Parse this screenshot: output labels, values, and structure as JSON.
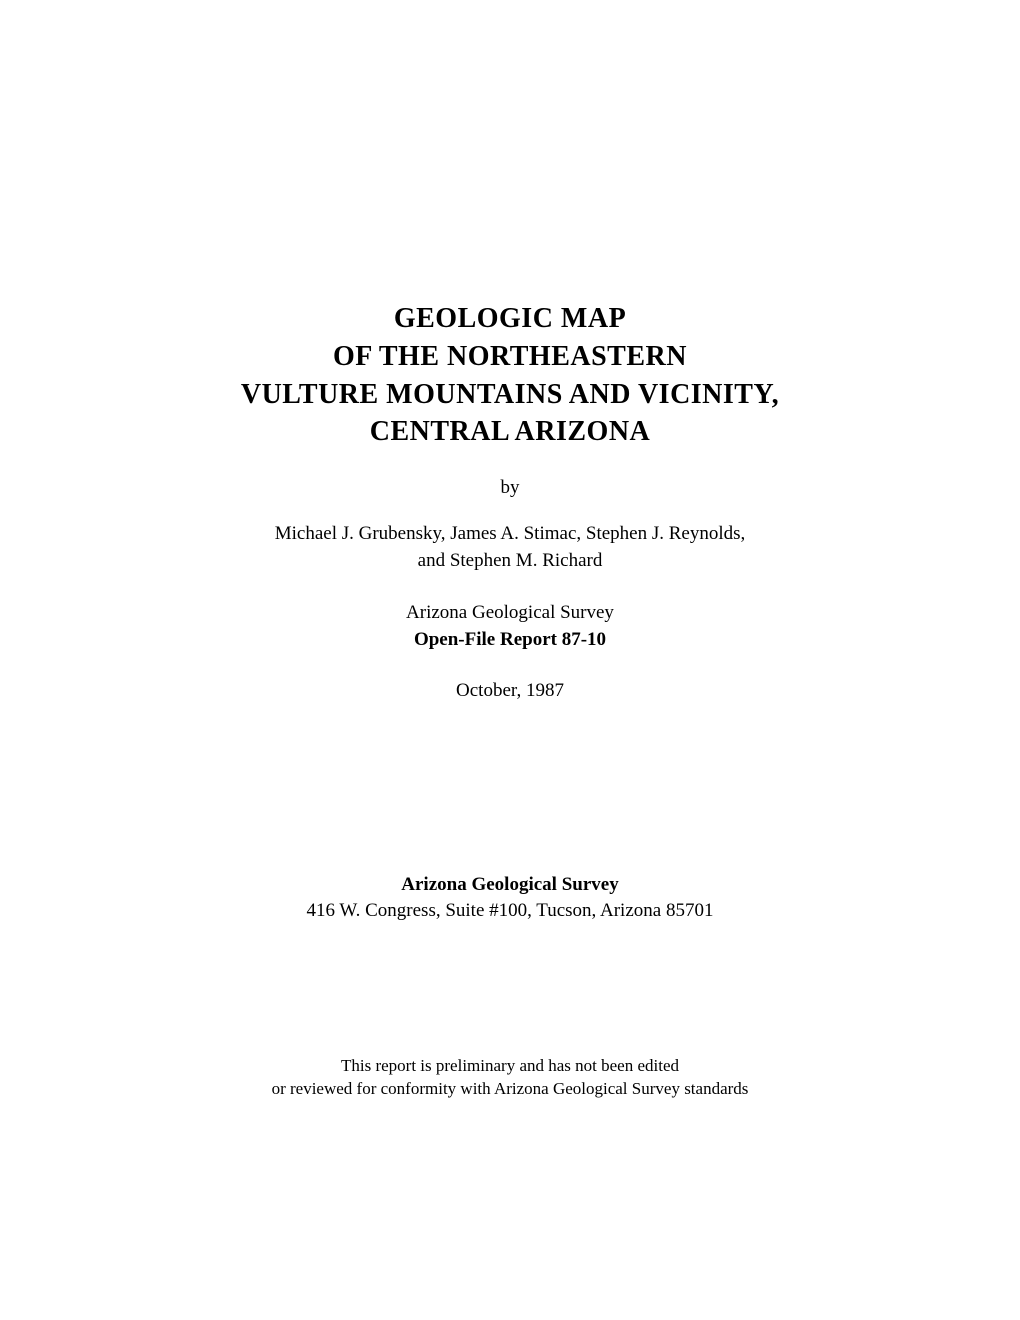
{
  "title": {
    "line1": "GEOLOGIC MAP",
    "line2": "OF THE NORTHEASTERN",
    "line3": "VULTURE MOUNTAINS AND VICINITY,",
    "line4": "CENTRAL ARIZONA"
  },
  "byLabel": "by",
  "authors": {
    "line1": "Michael J. Grubensky, James A. Stimac, Stephen J. Reynolds,",
    "line2": "and Stephen M. Richard"
  },
  "survey": {
    "org": "Arizona Geological Survey",
    "report": "Open-File Report 87-10"
  },
  "date": "October, 1987",
  "address": {
    "org": "Arizona Geological Survey",
    "street": "416 W. Congress, Suite #100, Tucson, Arizona 85701"
  },
  "disclaimer": {
    "line1": "This report is preliminary and has not been edited",
    "line2": "or reviewed for conformity with Arizona Geological Survey standards"
  }
}
